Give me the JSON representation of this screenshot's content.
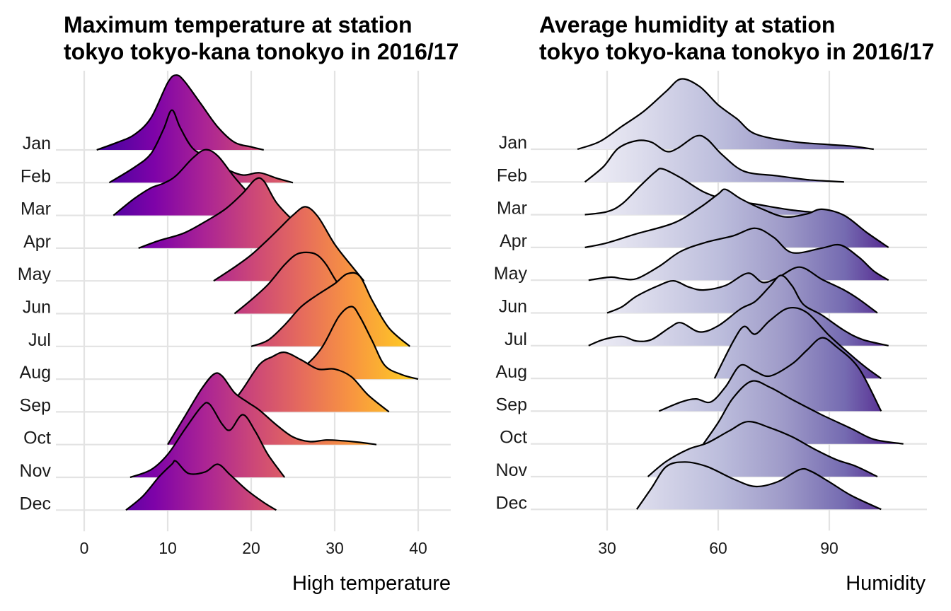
{
  "chart_data": [
    {
      "type": "ridgeline",
      "title_lines": [
        "Maximum temperature at station",
        "tokyo tokyo-kana tonokyo in 2016/17"
      ],
      "xlabel": "High temperature",
      "ylabel": "",
      "xlim": [
        -3,
        44
      ],
      "x_ticks": [
        0,
        10,
        20,
        30,
        40
      ],
      "categories": [
        "Jan",
        "Feb",
        "Mar",
        "Apr",
        "May",
        "Jun",
        "Jul",
        "Aug",
        "Sep",
        "Oct",
        "Nov",
        "Dec"
      ],
      "fill": "gradient by x (plasma)",
      "grid": true,
      "ridges": {
        "Jan": [
          [
            1.5,
            0
          ],
          [
            4,
            0.1
          ],
          [
            6,
            0.2
          ],
          [
            8,
            0.42
          ],
          [
            10,
            0.88
          ],
          [
            11,
            0.98
          ],
          [
            12,
            0.9
          ],
          [
            14,
            0.6
          ],
          [
            16,
            0.3
          ],
          [
            18,
            0.1
          ],
          [
            20,
            0.04
          ],
          [
            21.5,
            0
          ]
        ],
        "Feb": [
          [
            3,
            0
          ],
          [
            6,
            0.2
          ],
          [
            8,
            0.38
          ],
          [
            9.5,
            0.7
          ],
          [
            10.5,
            0.95
          ],
          [
            11.5,
            0.72
          ],
          [
            13,
            0.45
          ],
          [
            15,
            0.32
          ],
          [
            17,
            0.18
          ],
          [
            19,
            0.1
          ],
          [
            21,
            0.13
          ],
          [
            23,
            0.06
          ],
          [
            25,
            0
          ]
        ],
        "Mar": [
          [
            3.5,
            0
          ],
          [
            6,
            0.22
          ],
          [
            8,
            0.36
          ],
          [
            9.5,
            0.42
          ],
          [
            11,
            0.52
          ],
          [
            13,
            0.75
          ],
          [
            14.5,
            0.86
          ],
          [
            16,
            0.78
          ],
          [
            18,
            0.5
          ],
          [
            20,
            0.26
          ],
          [
            22,
            0.1
          ],
          [
            24,
            0
          ]
        ],
        "Apr": [
          [
            6.5,
            0
          ],
          [
            9,
            0.1
          ],
          [
            12,
            0.2
          ],
          [
            15,
            0.38
          ],
          [
            17,
            0.52
          ],
          [
            19,
            0.72
          ],
          [
            20.5,
            0.9
          ],
          [
            21.5,
            0.88
          ],
          [
            23,
            0.6
          ],
          [
            25,
            0.36
          ],
          [
            27,
            0.12
          ],
          [
            29,
            0
          ]
        ],
        "May": [
          [
            15.5,
            0
          ],
          [
            18,
            0.18
          ],
          [
            20,
            0.34
          ],
          [
            22,
            0.54
          ],
          [
            23.5,
            0.7
          ],
          [
            25,
            0.86
          ],
          [
            26.5,
            0.97
          ],
          [
            28,
            0.84
          ],
          [
            30,
            0.48
          ],
          [
            32,
            0.2
          ],
          [
            33.5,
            0
          ]
        ],
        "Jun": [
          [
            18,
            0
          ],
          [
            20,
            0.18
          ],
          [
            22,
            0.38
          ],
          [
            24,
            0.64
          ],
          [
            25.5,
            0.78
          ],
          [
            27,
            0.8
          ],
          [
            28,
            0.76
          ],
          [
            29,
            0.64
          ],
          [
            30.5,
            0.38
          ],
          [
            32.5,
            0.18
          ],
          [
            35.5,
            0
          ]
        ],
        "Jul": [
          [
            20,
            0
          ],
          [
            22,
            0.08
          ],
          [
            24,
            0.28
          ],
          [
            26,
            0.52
          ],
          [
            28,
            0.68
          ],
          [
            30,
            0.82
          ],
          [
            31.5,
            0.95
          ],
          [
            33,
            0.92
          ],
          [
            34.5,
            0.6
          ],
          [
            36.5,
            0.24
          ],
          [
            39,
            0
          ]
        ],
        "Aug": [
          [
            22,
            0
          ],
          [
            24.5,
            0.08
          ],
          [
            26.5,
            0.18
          ],
          [
            28.5,
            0.42
          ],
          [
            30.5,
            0.82
          ],
          [
            32,
            0.95
          ],
          [
            33,
            0.82
          ],
          [
            34.5,
            0.5
          ],
          [
            36,
            0.18
          ],
          [
            38,
            0.06
          ],
          [
            40,
            0
          ]
        ],
        "Sep": [
          [
            17,
            0
          ],
          [
            19,
            0.3
          ],
          [
            21,
            0.62
          ],
          [
            22.5,
            0.72
          ],
          [
            24,
            0.78
          ],
          [
            26,
            0.68
          ],
          [
            28,
            0.56
          ],
          [
            30,
            0.56
          ],
          [
            32,
            0.46
          ],
          [
            34,
            0.22
          ],
          [
            36.5,
            0
          ]
        ],
        "Oct": [
          [
            10,
            0
          ],
          [
            12,
            0.36
          ],
          [
            14,
            0.72
          ],
          [
            15.5,
            0.92
          ],
          [
            16.5,
            0.9
          ],
          [
            18,
            0.68
          ],
          [
            19.5,
            0.56
          ],
          [
            21,
            0.45
          ],
          [
            23,
            0.26
          ],
          [
            25,
            0.1
          ],
          [
            27,
            0.04
          ],
          [
            29,
            0.06
          ],
          [
            31,
            0.05
          ],
          [
            33,
            0.03
          ],
          [
            35,
            0
          ]
        ],
        "Nov": [
          [
            5.5,
            0
          ],
          [
            8,
            0.1
          ],
          [
            10,
            0.3
          ],
          [
            12,
            0.62
          ],
          [
            14,
            0.92
          ],
          [
            15,
            0.96
          ],
          [
            16.5,
            0.7
          ],
          [
            17.5,
            0.62
          ],
          [
            19,
            0.82
          ],
          [
            20.5,
            0.6
          ],
          [
            22,
            0.3
          ],
          [
            24,
            0
          ]
        ],
        "Dec": [
          [
            5,
            0
          ],
          [
            7,
            0.18
          ],
          [
            9,
            0.44
          ],
          [
            10.5,
            0.6
          ],
          [
            11,
            0.64
          ],
          [
            12.5,
            0.48
          ],
          [
            14.5,
            0.5
          ],
          [
            16,
            0.6
          ],
          [
            17.5,
            0.46
          ],
          [
            19.5,
            0.26
          ],
          [
            21.5,
            0.1
          ],
          [
            23,
            0
          ]
        ]
      }
    },
    {
      "type": "ridgeline",
      "title_lines": [
        "Average humidity at station",
        "tokyo tokyo-kana tonokyo in 2016/17"
      ],
      "xlabel": "Humidity",
      "ylabel": "",
      "xlim": [
        10,
        118
      ],
      "x_ticks": [
        30,
        60,
        90
      ],
      "categories": [
        "Jan",
        "Feb",
        "Mar",
        "Apr",
        "May",
        "Jun",
        "Jul",
        "Aug",
        "Sep",
        "Oct",
        "Nov",
        "Dec"
      ],
      "fill": "gradient by x (purples)",
      "grid": true,
      "ridges": {
        "Jan": [
          [
            22,
            0
          ],
          [
            28,
            0.1
          ],
          [
            34,
            0.3
          ],
          [
            40,
            0.5
          ],
          [
            46,
            0.76
          ],
          [
            50,
            0.92
          ],
          [
            55,
            0.82
          ],
          [
            60,
            0.58
          ],
          [
            65,
            0.4
          ],
          [
            70,
            0.2
          ],
          [
            80,
            0.1
          ],
          [
            90,
            0.06
          ],
          [
            96,
            0.04
          ],
          [
            102,
            0
          ]
        ],
        "Feb": [
          [
            24,
            0
          ],
          [
            29,
            0.2
          ],
          [
            33,
            0.44
          ],
          [
            38,
            0.54
          ],
          [
            42,
            0.52
          ],
          [
            46,
            0.4
          ],
          [
            49,
            0.44
          ],
          [
            54,
            0.6
          ],
          [
            57,
            0.56
          ],
          [
            61,
            0.36
          ],
          [
            67,
            0.14
          ],
          [
            76,
            0.08
          ],
          [
            84,
            0.03
          ],
          [
            94,
            0
          ]
        ],
        "Mar": [
          [
            24,
            0
          ],
          [
            30,
            0.04
          ],
          [
            34,
            0.14
          ],
          [
            39,
            0.38
          ],
          [
            43,
            0.56
          ],
          [
            45,
            0.6
          ],
          [
            50,
            0.48
          ],
          [
            56,
            0.3
          ],
          [
            62,
            0.2
          ],
          [
            70,
            0.14
          ],
          [
            80,
            0.06
          ],
          [
            93,
            0
          ]
        ],
        "Apr": [
          [
            24,
            0
          ],
          [
            30,
            0.06
          ],
          [
            38,
            0.18
          ],
          [
            48,
            0.32
          ],
          [
            55,
            0.52
          ],
          [
            60,
            0.7
          ],
          [
            62,
            0.76
          ],
          [
            66,
            0.64
          ],
          [
            72,
            0.5
          ],
          [
            78,
            0.4
          ],
          [
            84,
            0.44
          ],
          [
            88,
            0.5
          ],
          [
            94,
            0.42
          ],
          [
            100,
            0.2
          ],
          [
            106,
            0
          ]
        ],
        "May": [
          [
            25,
            0
          ],
          [
            31,
            0.04
          ],
          [
            34,
            0.02
          ],
          [
            38,
            0.02
          ],
          [
            44,
            0.18
          ],
          [
            50,
            0.38
          ],
          [
            57,
            0.5
          ],
          [
            64,
            0.58
          ],
          [
            70,
            0.68
          ],
          [
            75,
            0.56
          ],
          [
            80,
            0.36
          ],
          [
            88,
            0.42
          ],
          [
            93,
            0.46
          ],
          [
            98,
            0.3
          ],
          [
            102,
            0.12
          ],
          [
            106,
            0
          ]
        ],
        "Jun": [
          [
            30,
            0
          ],
          [
            34,
            0.08
          ],
          [
            38,
            0.22
          ],
          [
            44,
            0.36
          ],
          [
            48,
            0.42
          ],
          [
            52,
            0.34
          ],
          [
            56,
            0.3
          ],
          [
            62,
            0.36
          ],
          [
            68,
            0.52
          ],
          [
            72,
            0.4
          ],
          [
            76,
            0.46
          ],
          [
            82,
            0.6
          ],
          [
            88,
            0.44
          ],
          [
            94,
            0.3
          ],
          [
            98,
            0.18
          ],
          [
            103,
            0
          ]
        ],
        "Jul": [
          [
            25,
            0
          ],
          [
            29,
            0.08
          ],
          [
            34,
            0.12
          ],
          [
            38,
            0.06
          ],
          [
            42,
            0.08
          ],
          [
            47,
            0.24
          ],
          [
            50,
            0.3
          ],
          [
            55,
            0.18
          ],
          [
            60,
            0.26
          ],
          [
            66,
            0.48
          ],
          [
            70,
            0.58
          ],
          [
            74,
            0.78
          ],
          [
            77,
            0.92
          ],
          [
            80,
            0.78
          ],
          [
            83,
            0.54
          ],
          [
            88,
            0.4
          ],
          [
            94,
            0.2
          ],
          [
            99,
            0.08
          ],
          [
            106,
            0
          ]
        ],
        "Aug": [
          [
            59,
            0
          ],
          [
            64,
            0.48
          ],
          [
            67,
            0.68
          ],
          [
            70,
            0.58
          ],
          [
            74,
            0.76
          ],
          [
            79,
            0.92
          ],
          [
            84,
            0.86
          ],
          [
            90,
            0.56
          ],
          [
            96,
            0.3
          ],
          [
            100,
            0.14
          ],
          [
            104,
            0
          ]
        ],
        "Sep": [
          [
            44,
            0
          ],
          [
            50,
            0.12
          ],
          [
            54,
            0.16
          ],
          [
            58,
            0.12
          ],
          [
            62,
            0.32
          ],
          [
            66,
            0.6
          ],
          [
            70,
            0.52
          ],
          [
            74,
            0.46
          ],
          [
            80,
            0.62
          ],
          [
            84,
            0.8
          ],
          [
            88,
            0.96
          ],
          [
            92,
            0.84
          ],
          [
            98,
            0.56
          ],
          [
            104,
            0
          ]
        ],
        "Oct": [
          [
            56,
            0
          ],
          [
            60,
            0.28
          ],
          [
            64,
            0.6
          ],
          [
            69,
            0.82
          ],
          [
            74,
            0.74
          ],
          [
            80,
            0.58
          ],
          [
            88,
            0.38
          ],
          [
            96,
            0.2
          ],
          [
            102,
            0.06
          ],
          [
            110,
            0
          ]
        ],
        "Nov": [
          [
            41,
            0
          ],
          [
            46,
            0.2
          ],
          [
            52,
            0.36
          ],
          [
            57,
            0.44
          ],
          [
            63,
            0.6
          ],
          [
            68,
            0.72
          ],
          [
            74,
            0.64
          ],
          [
            80,
            0.52
          ],
          [
            86,
            0.36
          ],
          [
            92,
            0.22
          ],
          [
            97,
            0.14
          ],
          [
            103,
            0
          ]
        ],
        "Dec": [
          [
            38,
            0
          ],
          [
            42,
            0.28
          ],
          [
            46,
            0.56
          ],
          [
            51,
            0.62
          ],
          [
            57,
            0.56
          ],
          [
            64,
            0.4
          ],
          [
            70,
            0.3
          ],
          [
            76,
            0.36
          ],
          [
            82,
            0.52
          ],
          [
            85,
            0.5
          ],
          [
            90,
            0.36
          ],
          [
            96,
            0.18
          ],
          [
            104,
            0
          ]
        ]
      }
    }
  ]
}
